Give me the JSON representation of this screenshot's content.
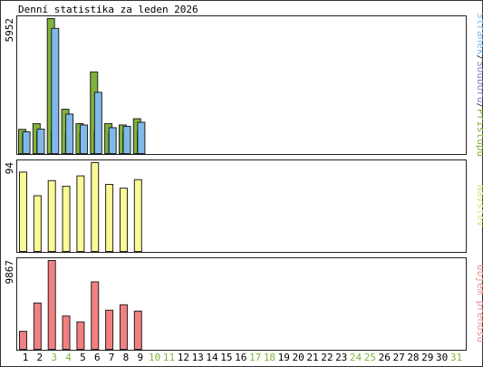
{
  "chart_data": {
    "type": "bar",
    "title": "Denní statistika za leden 2026",
    "days": [
      "1",
      "2",
      "3",
      "4",
      "5",
      "6",
      "7",
      "8",
      "9",
      "10",
      "11",
      "12",
      "13",
      "14",
      "15",
      "16",
      "17",
      "18",
      "19",
      "20",
      "21",
      "22",
      "23",
      "24",
      "25",
      "26",
      "27",
      "28",
      "29",
      "30",
      "31"
    ],
    "weekend_days": [
      "3",
      "4",
      "10",
      "11",
      "17",
      "18",
      "24",
      "25",
      "31"
    ],
    "panels": [
      {
        "id": "hits",
        "ymax_label": "5952",
        "ymax": 5952,
        "legend_parts": [
          {
            "text": "Stránek",
            "color": "#7fb9ea"
          },
          {
            "text": "/",
            "color": "#444444"
          },
          {
            "text": "Souborů",
            "color": "#7f85c6"
          },
          {
            "text": "/",
            "color": "#444444"
          },
          {
            "text": "Přístupů",
            "color": "#7fb33a"
          }
        ],
        "series": [
          {
            "name": "Přístupů",
            "color": "#7fb33a",
            "values": [
              1068,
              1320,
              5952,
              1956,
              1320,
              3600,
              1320,
              1260,
              1536
            ]
          },
          {
            "name": "Souborů",
            "color": "#7f85c6",
            "values": [
              860,
              960,
              1000,
              900,
              960,
              1000,
              900,
              1000,
              1000
            ]
          },
          {
            "name": "Stránek",
            "color": "#7fb9ea",
            "values": [
              960,
              1080,
              5520,
              1740,
              1260,
              2700,
              1140,
              1200,
              1380
            ]
          }
        ]
      },
      {
        "id": "visits",
        "ymax_label": "94",
        "ymax": 94,
        "legend_parts": [
          {
            "text": "Návštěv",
            "color": "#e3e07a"
          }
        ],
        "series": [
          {
            "name": "Návštěv",
            "color": "#fafa96",
            "values": [
              84,
              59,
              75,
              69,
              80,
              94,
              71,
              67,
              76
            ]
          }
        ]
      },
      {
        "id": "volume",
        "ymax_label": "9867",
        "ymax": 9867,
        "legend_parts": [
          {
            "text": "Objem přenosu",
            "color": "#ef8f8f"
          }
        ],
        "series": [
          {
            "name": "Objem přenosu",
            "color": "#f28080",
            "values": [
              2000,
              5150,
              9867,
              3700,
              3050,
              7500,
              4350,
              4950,
              4250
            ]
          }
        ]
      }
    ]
  }
}
